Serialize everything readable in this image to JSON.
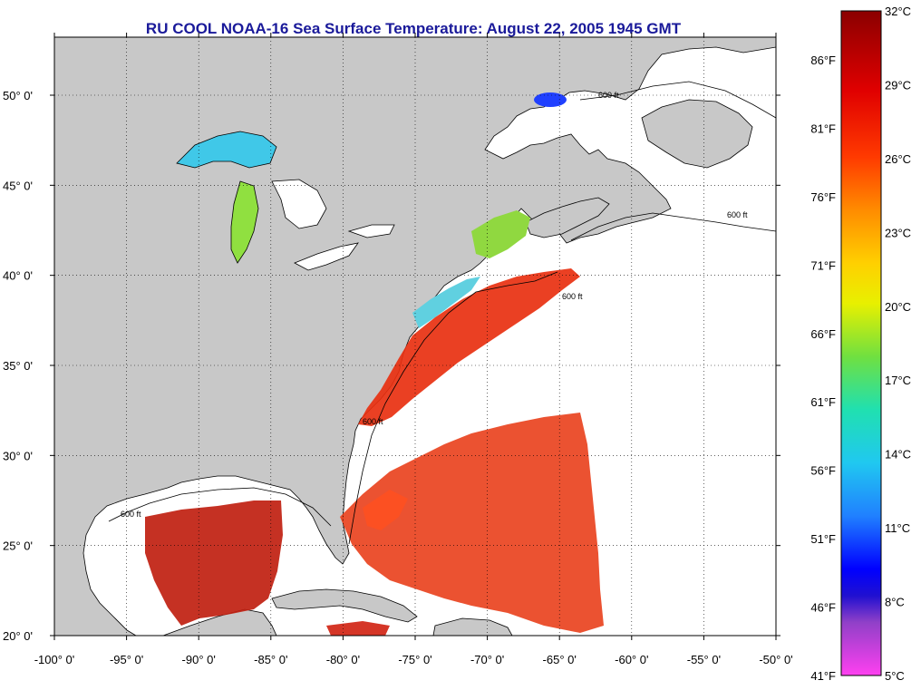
{
  "title": "RU COOL  NOAA-16  Sea Surface Temperature:  August 22, 2005 1945 GMT",
  "map": {
    "lon_range": [
      -100,
      -50
    ],
    "lat_range": [
      20,
      52
    ],
    "lon_ticks": [
      {
        "value": -100,
        "label": "-100° 0'"
      },
      {
        "value": -95,
        "label": "-95° 0'"
      },
      {
        "value": -90,
        "label": "-90° 0'"
      },
      {
        "value": -85,
        "label": "-85° 0'"
      },
      {
        "value": -80,
        "label": "-80° 0'"
      },
      {
        "value": -75,
        "label": "-75° 0'"
      },
      {
        "value": -70,
        "label": "-70° 0'"
      },
      {
        "value": -65,
        "label": "-65° 0'"
      },
      {
        "value": -60,
        "label": "-60° 0'"
      },
      {
        "value": -55,
        "label": "-55° 0'"
      },
      {
        "value": -50,
        "label": "-50° 0'"
      }
    ],
    "lat_ticks": [
      {
        "value": 20,
        "label": "20° 0'"
      },
      {
        "value": 25,
        "label": "25° 0'"
      },
      {
        "value": 30,
        "label": "30° 0'"
      },
      {
        "value": 35,
        "label": "35° 0'"
      },
      {
        "value": 40,
        "label": "40° 0'"
      },
      {
        "value": 45,
        "label": "45° 0'"
      },
      {
        "value": 50,
        "label": "50° 0'"
      }
    ],
    "grid": "dotted",
    "land_color": "#c8c8c8",
    "ocean_color": "#ffffff",
    "contour_label": "600 ft"
  },
  "colorbar": {
    "celsius_labels": [
      "32°C",
      "29°C",
      "26°C",
      "23°C",
      "20°C",
      "17°C",
      "14°C",
      "11°C",
      "8°C",
      "5°C"
    ],
    "fahrenheit_labels": [
      "86°F",
      "81°F",
      "76°F",
      "71°F",
      "66°F",
      "61°F",
      "56°F",
      "51°F",
      "46°F",
      "41°F"
    ],
    "colors": [
      "#8b0000",
      "#d40000",
      "#ff3000",
      "#ff7a00",
      "#ffc000",
      "#f0f000",
      "#a0e030",
      "#40e080",
      "#20e0d0",
      "#30b0ff",
      "#1060ff",
      "#0000ff",
      "#2000e0",
      "#8030c0",
      "#e040e0",
      "#ff40ff"
    ]
  }
}
